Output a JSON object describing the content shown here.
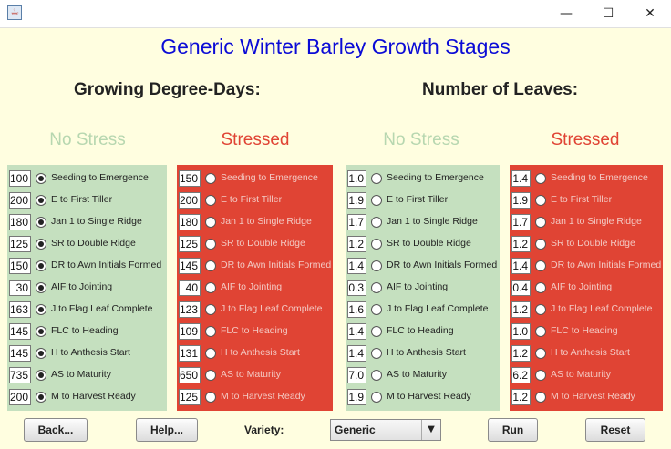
{
  "window": {
    "title": "",
    "controls": {
      "minimize": "—",
      "maximize": "☐",
      "close": "✕"
    }
  },
  "main_title": "Generic Winter Barley Growth Stages",
  "sections": {
    "gdd_title": "Growing Degree-Days:",
    "leaves_title": "Number of Leaves:"
  },
  "columns": [
    {
      "heading": "No Stress",
      "color": "#c5e0bf",
      "heading_color": "#b7d7b0",
      "selected_index": -1,
      "values": [
        "100",
        "200",
        "180",
        "125",
        "150",
        "30",
        "163",
        "145",
        "145",
        "735",
        "200"
      ],
      "all_selected": true
    },
    {
      "heading": "Stressed",
      "color": "#e04434",
      "heading_color": "#e04434",
      "all_selected": false,
      "values": [
        "150",
        "200",
        "180",
        "125",
        "145",
        "40",
        "123",
        "109",
        "131",
        "650",
        "125"
      ]
    },
    {
      "heading": "No Stress",
      "color": "#c5e0bf",
      "heading_color": "#b7d7b0",
      "all_selected": false,
      "values": [
        "1.0",
        "1.9",
        "1.7",
        "1.2",
        "1.4",
        "0.3",
        "1.6",
        "1.4",
        "1.4",
        "7.0",
        "1.9"
      ]
    },
    {
      "heading": "Stressed",
      "color": "#e04434",
      "heading_color": "#e04434",
      "all_selected": false,
      "values": [
        "1.4",
        "1.9",
        "1.7",
        "1.2",
        "1.4",
        "0.4",
        "1.2",
        "1.0",
        "1.2",
        "6.2",
        "1.2"
      ]
    }
  ],
  "stages": [
    "Seeding to Emergence",
    "E to First Tiller",
    "Jan 1 to Single Ridge",
    "SR to Double Ridge",
    "DR to Awn Initials Formed",
    "AIF to Jointing",
    "J to Flag Leaf Complete",
    "FLC to Heading",
    "H to Anthesis Start",
    "AS to Maturity",
    "M to Harvest Ready"
  ],
  "buttons": {
    "back": "Back...",
    "help": "Help...",
    "run": "Run",
    "reset": "Reset"
  },
  "variety": {
    "label": "Variety:",
    "selected": "Generic"
  }
}
